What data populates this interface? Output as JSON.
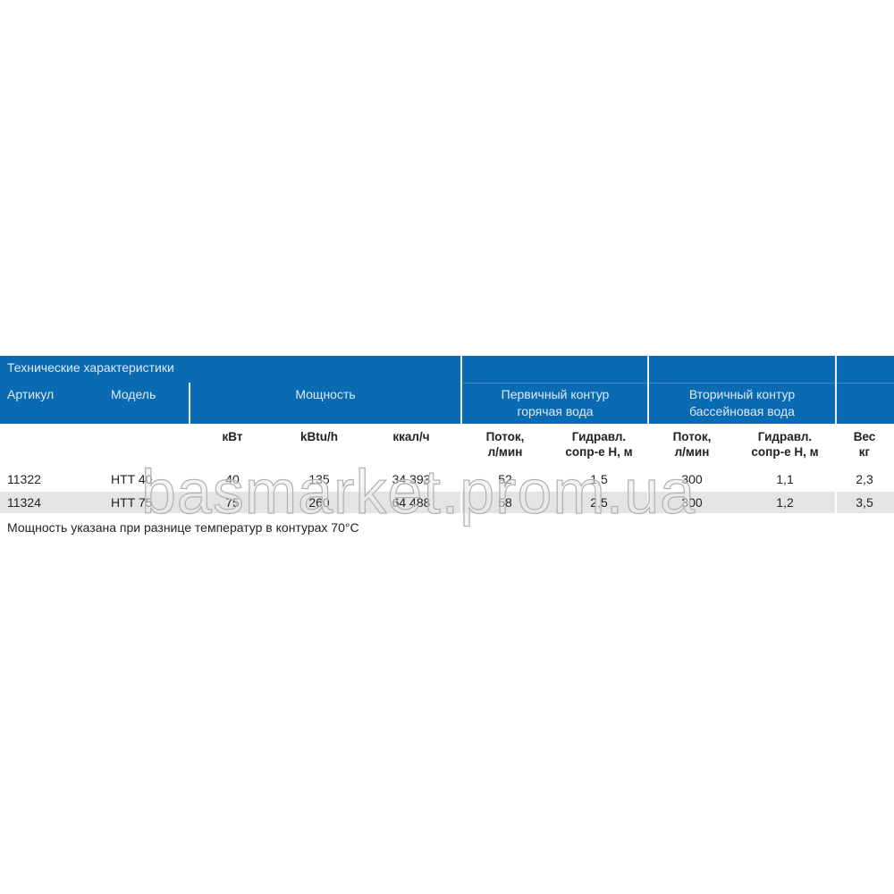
{
  "table": {
    "title": "Технические характеристики",
    "headers": {
      "article": "Артикул",
      "model": "Модель",
      "power": "Мощность",
      "primary": [
        "Первичный контур",
        "горячая вода"
      ],
      "secondary": [
        "Вторичный контур",
        "бассейновая вода"
      ]
    },
    "subheaders": {
      "kw": "кВт",
      "kbtu": "kBtu/h",
      "kcal": "ккал/ч",
      "flow1": [
        "Поток,",
        "л/мин"
      ],
      "hyd1": [
        "Гидравл.",
        "сопр-е Н, м"
      ],
      "flow2": [
        "Поток,",
        "л/мин"
      ],
      "hyd2": [
        "Гидравл.",
        "сопр-е Н, м"
      ],
      "weight": [
        "Вес",
        "кг"
      ]
    },
    "rows": [
      {
        "article": "11322",
        "model": "HTT 40",
        "kw": "40",
        "kbtu": "135",
        "kcal": "34 393",
        "flow1": "52",
        "hyd1": "1,5",
        "flow2": "300",
        "hyd2": "1,1",
        "weight": "2,3"
      },
      {
        "article": "11324",
        "model": "HTT 75",
        "kw": "75",
        "kbtu": "260",
        "kcal": "64 488",
        "flow1": "58",
        "hyd1": "2,5",
        "flow2": "300",
        "hyd2": "1,2",
        "weight": "3,5"
      }
    ],
    "note": "Мощность указана при разнице температур в контурах 70°C"
  },
  "watermark": "basmarket.prom.ua",
  "colors": {
    "header_bg": "#0a6bb3",
    "alt_row": "#e4e4e4"
  }
}
